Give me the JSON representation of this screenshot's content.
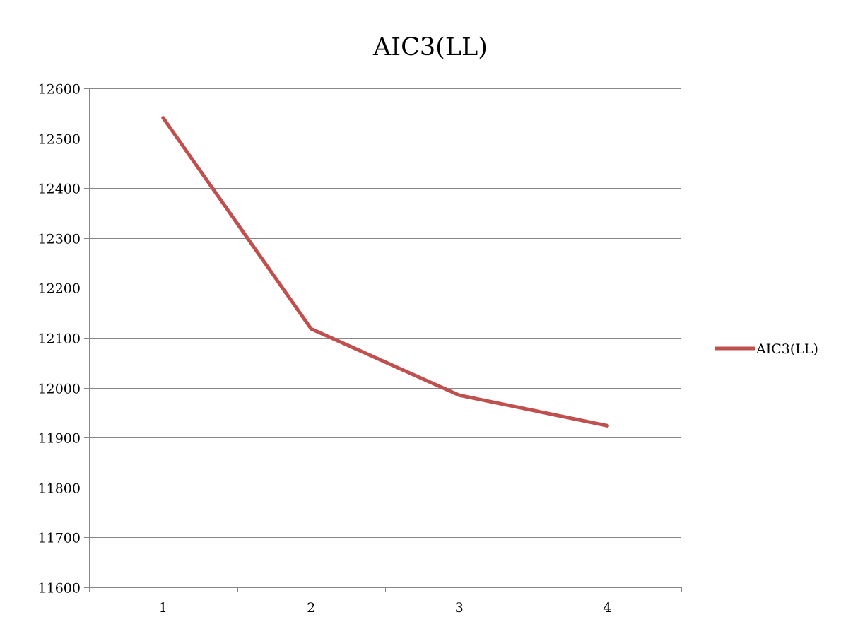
{
  "chart_data": {
    "type": "line",
    "title": "AIC3(LL)",
    "xlabel": "",
    "ylabel": "",
    "categories": [
      "1",
      "2",
      "3",
      "4"
    ],
    "ylim": [
      11600,
      12600
    ],
    "yticks": [
      "11600",
      "11700",
      "11800",
      "11900",
      "12000",
      "12100",
      "12200",
      "12300",
      "12400",
      "12500",
      "12600"
    ],
    "grid": true,
    "legend_position": "right",
    "series": [
      {
        "name": "AIC3(LL)",
        "values": [
          12541,
          12118,
          11985,
          11924
        ],
        "color": "#c0504d"
      }
    ]
  }
}
